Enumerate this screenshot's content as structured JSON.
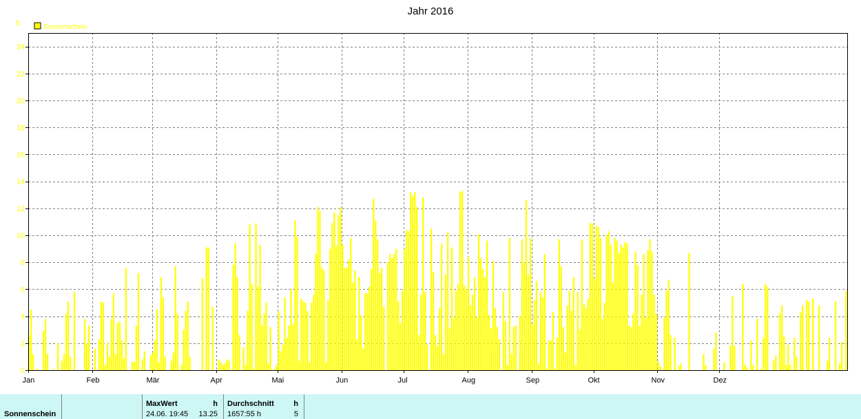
{
  "chart_data": {
    "type": "bar",
    "title": "Jahr 2016",
    "ylabel": "h",
    "ylim": [
      0,
      25
    ],
    "yticks": [
      0,
      2,
      4,
      6,
      8,
      10,
      12,
      14,
      16,
      18,
      20,
      22,
      24
    ],
    "months": [
      "Jan",
      "Feb",
      "Mär",
      "Apr",
      "Mai",
      "Jun",
      "Jul",
      "Aug",
      "Sep",
      "Okt",
      "Nov",
      "Dez"
    ],
    "grid": true,
    "legend_position": "top-left",
    "series": [
      {
        "name": "Sonnenschein",
        "color": "#ffff00",
        "values": [
          2.6,
          4.5,
          1.2,
          0,
          0.1,
          0,
          0,
          2.9,
          3.8,
          1.2,
          0,
          0,
          0.1,
          0,
          2,
          0,
          0.7,
          1.2,
          4.2,
          5.1,
          1,
          0,
          5.8,
          0,
          0,
          0,
          0,
          3.8,
          2,
          3.3,
          0,
          0,
          1.6,
          0,
          2.3,
          5.1,
          5,
          0.4,
          2,
          1,
          3.8,
          5.7,
          1.2,
          3.5,
          3.6,
          2.2,
          0.9,
          7.6,
          0,
          0,
          0.6,
          0.6,
          3.3,
          7.2,
          0,
          0.8,
          1.4,
          0,
          0,
          1.1,
          1.3,
          2.2,
          4.5,
          0.6,
          6.9,
          5.4,
          1,
          0,
          0,
          0.7,
          1.3,
          7.7,
          4.2,
          0,
          0.4,
          3,
          4.4,
          5.1,
          1,
          0,
          0,
          0,
          0,
          0,
          6.8,
          0,
          9.1,
          9.1,
          0,
          4.7,
          0,
          0,
          0.8,
          0.6,
          0.4,
          0.5,
          0.8,
          0.7,
          0,
          7.8,
          9.4,
          6.9,
          2.6,
          0,
          1.7,
          0.4,
          4.4,
          10.8,
          6.4,
          0.1,
          10.9,
          6.2,
          9.3,
          3.3,
          4.2,
          5,
          0.5,
          3.2,
          0,
          0.1,
          0.4,
          4.4,
          1.4,
          1.9,
          5.4,
          2.4,
          3.3,
          6,
          3.4,
          11.1,
          9.9,
          0.7,
          5.3,
          5.1,
          5,
          4.4,
          0.6,
          5,
          5.6,
          8.6,
          12.1,
          11.8,
          7.6,
          7.4,
          0.6,
          5.2,
          9,
          10.9,
          11.7,
          9.2,
          11.5,
          12.1,
          9.3,
          7.6,
          7.6,
          8.2,
          9.8,
          6.5,
          7.4,
          2.3,
          6.9,
          4.1,
          1.6,
          5.7,
          5.7,
          6.2,
          7.5,
          12.7,
          11.1,
          9.7,
          7.2,
          7.6,
          4.7,
          0,
          8,
          8.6,
          8.3,
          8.6,
          9,
          5.1,
          3.5,
          5.9,
          9,
          10.4,
          10.3,
          13.2,
          12.9,
          13.2,
          12.1,
          2.6,
          5.6,
          12.8,
          5.8,
          1.9,
          0,
          10.5,
          7.3,
          2.6,
          1.8,
          4.6,
          9.4,
          1.2,
          7.1,
          10.2,
          3.1,
          9.1,
          3.9,
          5.9,
          6.4,
          13.2,
          13.3,
          6.3,
          6,
          8.4,
          4.8,
          5.6,
          6.9,
          3.9,
          10.1,
          8.3,
          7.5,
          6.9,
          9.6,
          4.1,
          3.1,
          8.1,
          4.6,
          3.2,
          2.3,
          0,
          5.8,
          3.6,
          0.4,
          9.8,
          1.2,
          3.2,
          3.3,
          0,
          4,
          9.7,
          8,
          12.6,
          7.1,
          9.8,
          3.4,
          5.2,
          6.6,
          0.5,
          5.8,
          5.4,
          8.6,
          0.1,
          2.2,
          2.2,
          4.3,
          0.1,
          2.4,
          9.7,
          7.7,
          3.2,
          1.3,
          4.8,
          5.9,
          4.4,
          6.9,
          0.4,
          5.8,
          3,
          9.7,
          4.9,
          4.6,
          5.3,
          10.9,
          10.9,
          6.8,
          10.7,
          10.6,
          9.8,
          3.8,
          5,
          10,
          10.3,
          9.3,
          6.5,
          9.8,
          9.6,
          8.7,
          9.3,
          9.1,
          9.5,
          9.4,
          3.3,
          3.2,
          4.2,
          8.8,
          7.8,
          3.3,
          5.6,
          8.6,
          3.9,
          8.9,
          9.7,
          8.8,
          5.6,
          4.2,
          0.6,
          0.3,
          0,
          3.9,
          5.9,
          6.7,
          2.6,
          0,
          2.4,
          0,
          0.3,
          0.5,
          0,
          0,
          0,
          8.7,
          0,
          0,
          0,
          0,
          0,
          0,
          1.2,
          0.4,
          0,
          0,
          0,
          1.6,
          2.8,
          0,
          0,
          0,
          0.6,
          0,
          0,
          1.8,
          5.5,
          1.8,
          0,
          0,
          0,
          6.4,
          0.4,
          0.2,
          0,
          2.2,
          0.4,
          0,
          3.8,
          0,
          0.1,
          2.4,
          6.4,
          6.2,
          0,
          0,
          0.7,
          1.1,
          0,
          4.2,
          4.8,
          2.5,
          0.4,
          1.9,
          0.4,
          0,
          2.4,
          1,
          0,
          4.3,
          4.8,
          0,
          5.2,
          5.1,
          0,
          5.3,
          0,
          0,
          4.8,
          0,
          0,
          0,
          0.7,
          2.4,
          0,
          0,
          5.1,
          0,
          0.5,
          2.1,
          0,
          5.9
        ]
      }
    ]
  },
  "footer": {
    "row_label": "Sonnenschein",
    "max_header": "MaxWert",
    "max_unit": "h",
    "max_datetime": "24.06.  19:45",
    "max_value": "13.25",
    "avg_header": "Durchschnitt",
    "avg_unit": "h",
    "avg_total": "1657:55 h",
    "avg_value": "5"
  }
}
